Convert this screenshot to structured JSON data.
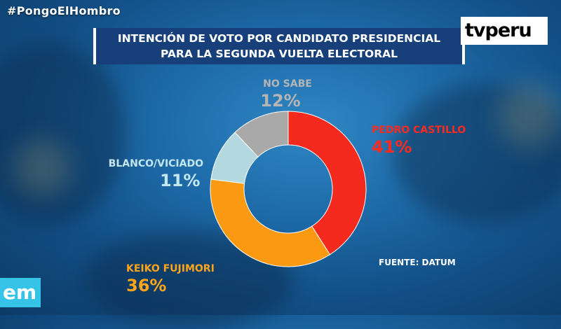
{
  "hashtag": "#PongoElHombro",
  "title": {
    "line1": "INTENCIÓN DE VOTO POR CANDIDATO PRESIDENCIAL",
    "line2": "PARA LA SEGUNDA VUELTA ELECTORAL"
  },
  "logo_text": "tvperu",
  "corner_logo_text": "em",
  "source": "FUENTE: DATUM",
  "colors": {
    "castillo": "#f52a1f",
    "fujimori": "#fb9a12",
    "blanco": "#b4d8df",
    "nosabe": "#a9a9a9"
  },
  "chart_data": {
    "type": "pie",
    "variant": "donut",
    "title": "INTENCIÓN DE VOTO POR CANDIDATO PRESIDENCIAL PARA LA SEGUNDA VUELTA ELECTORAL",
    "slices": [
      {
        "label": "PEDRO CASTILLO",
        "value": 41,
        "display": "41%"
      },
      {
        "label": "KEIKO FUJIMORI",
        "value": 36,
        "display": "36%"
      },
      {
        "label": "BLANCO/VICIADO",
        "value": 11,
        "display": "11%"
      },
      {
        "label": "NO SABE",
        "value": 12,
        "display": "12%"
      }
    ],
    "legend": "none"
  }
}
